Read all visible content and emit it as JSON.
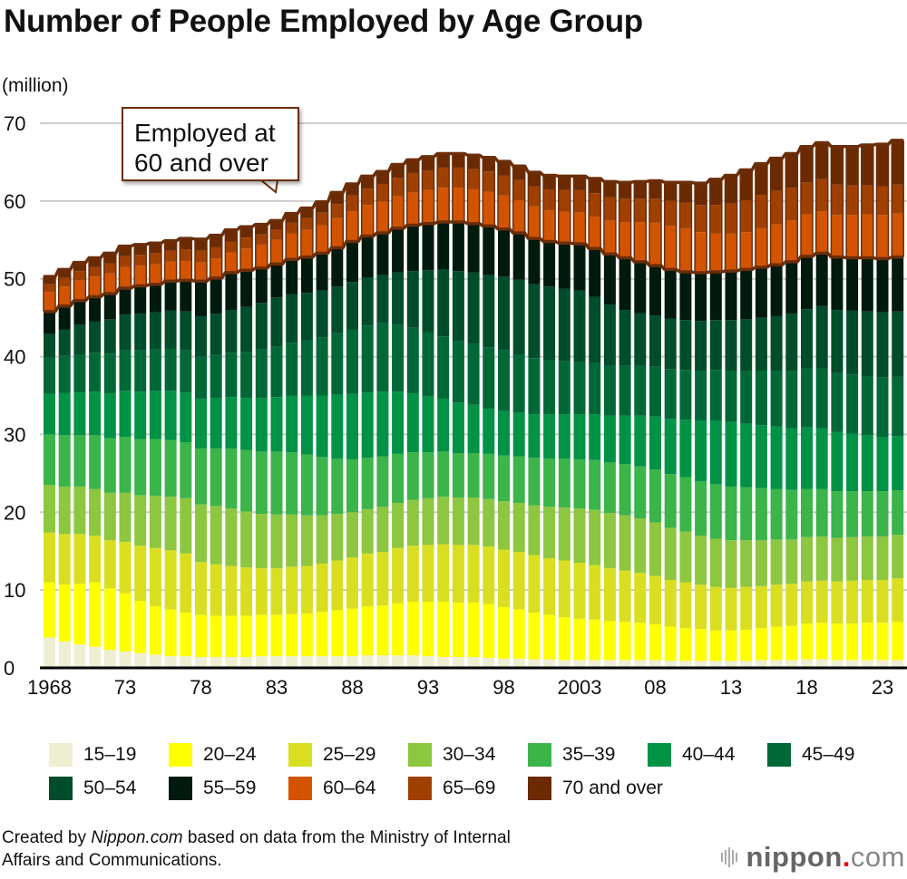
{
  "chart_data": {
    "type": "bar",
    "stacked": true,
    "title": "Number of People Employed by Age Group",
    "ylabel": "(million)",
    "xlabel": "",
    "ylim": [
      0,
      70
    ],
    "yticks": [
      0,
      10,
      20,
      30,
      40,
      50,
      60,
      70
    ],
    "grid": true,
    "legend_position": "bottom",
    "annotation": {
      "line1": "Employed at",
      "line2": "60 and over",
      "target_year": 1983
    },
    "x": [
      1968,
      1969,
      1970,
      1971,
      1972,
      1973,
      1974,
      1975,
      1976,
      1977,
      1978,
      1979,
      1980,
      1981,
      1982,
      1983,
      1984,
      1985,
      1986,
      1987,
      1988,
      1989,
      1990,
      1991,
      1992,
      1993,
      1994,
      1995,
      1996,
      1997,
      1998,
      1999,
      2000,
      2001,
      2002,
      2003,
      2004,
      2005,
      2006,
      2007,
      2008,
      2009,
      2010,
      2011,
      2012,
      2013,
      2014,
      2015,
      2016,
      2017,
      2018,
      2019,
      2020,
      2021,
      2022,
      2023,
      2024
    ],
    "xtick_labels": [
      {
        "year": 1968,
        "label": "1968"
      },
      {
        "year": 1973,
        "label": "73"
      },
      {
        "year": 1978,
        "label": "78"
      },
      {
        "year": 1983,
        "label": "83"
      },
      {
        "year": 1988,
        "label": "88"
      },
      {
        "year": 1993,
        "label": "93"
      },
      {
        "year": 1998,
        "label": "98"
      },
      {
        "year": 2003,
        "label": "2003"
      },
      {
        "year": 2008,
        "label": "08"
      },
      {
        "year": 2013,
        "label": "13"
      },
      {
        "year": 2018,
        "label": "18"
      },
      {
        "year": 2023,
        "label": "23"
      }
    ],
    "anchor_cumulative_note": "values below are per-group employment in millions, estimated from the figure",
    "series": [
      {
        "name": "15–19",
        "color": "#eeeed2",
        "values": [
          3.9,
          3.4,
          3.0,
          2.7,
          2.3,
          2.1,
          1.9,
          1.7,
          1.5,
          1.5,
          1.4,
          1.4,
          1.4,
          1.4,
          1.5,
          1.5,
          1.5,
          1.5,
          1.5,
          1.5,
          1.5,
          1.6,
          1.6,
          1.6,
          1.6,
          1.5,
          1.4,
          1.4,
          1.4,
          1.3,
          1.2,
          1.2,
          1.1,
          1.1,
          1.0,
          1.0,
          1.0,
          1.0,
          1.0,
          1.0,
          1.0,
          0.9,
          0.9,
          0.9,
          0.9,
          0.9,
          0.9,
          1.0,
          1.0,
          1.0,
          1.1,
          1.1,
          1.0,
          1.0,
          1.0,
          1.0,
          1.0
        ]
      },
      {
        "name": "20–24",
        "color": "#ffff00",
        "values": [
          7.1,
          7.3,
          7.8,
          8.3,
          7.9,
          7.5,
          6.7,
          6.2,
          6.0,
          5.6,
          5.4,
          5.3,
          5.3,
          5.3,
          5.3,
          5.3,
          5.4,
          5.5,
          5.7,
          5.9,
          6.1,
          6.3,
          6.4,
          6.7,
          6.9,
          7.0,
          7.1,
          7.0,
          7.0,
          6.9,
          6.6,
          6.3,
          6.0,
          5.7,
          5.5,
          5.3,
          5.2,
          5.0,
          4.9,
          4.8,
          4.6,
          4.4,
          4.2,
          4.1,
          3.9,
          3.9,
          4.0,
          4.1,
          4.3,
          4.4,
          4.6,
          4.7,
          4.7,
          4.7,
          4.8,
          4.8,
          4.9
        ]
      },
      {
        "name": "25–29",
        "color": "#d9df20",
        "values": [
          6.4,
          6.5,
          6.4,
          6.0,
          6.2,
          6.6,
          7.1,
          7.5,
          7.6,
          7.6,
          6.8,
          6.6,
          6.4,
          6.2,
          6.0,
          6.0,
          6.1,
          6.1,
          6.2,
          6.4,
          6.6,
          6.8,
          6.9,
          7.1,
          7.2,
          7.3,
          7.4,
          7.4,
          7.4,
          7.4,
          7.4,
          7.4,
          7.4,
          7.3,
          7.3,
          7.2,
          7.0,
          6.8,
          6.6,
          6.4,
          6.2,
          6.0,
          5.9,
          5.7,
          5.6,
          5.5,
          5.5,
          5.4,
          5.4,
          5.4,
          5.4,
          5.4,
          5.4,
          5.5,
          5.5,
          5.5,
          5.6
        ]
      },
      {
        "name": "30–34",
        "color": "#8dc63f",
        "values": [
          6.1,
          6.1,
          6.1,
          6.0,
          6.1,
          6.3,
          6.5,
          6.7,
          6.9,
          7.1,
          7.4,
          7.5,
          7.4,
          7.2,
          7.0,
          6.9,
          6.7,
          6.5,
          6.2,
          6.0,
          5.8,
          5.7,
          5.8,
          5.8,
          5.9,
          6.0,
          6.1,
          6.1,
          6.1,
          6.1,
          6.2,
          6.3,
          6.4,
          6.6,
          6.8,
          7.0,
          7.1,
          7.1,
          7.1,
          7.0,
          6.9,
          6.7,
          6.5,
          6.3,
          6.2,
          6.1,
          6.0,
          5.9,
          5.8,
          5.7,
          5.7,
          5.7,
          5.6,
          5.6,
          5.6,
          5.6,
          5.6
        ]
      },
      {
        "name": "35–39",
        "color": "#3bb44a",
        "values": [
          6.5,
          6.6,
          6.6,
          6.9,
          7.0,
          7.2,
          7.2,
          7.3,
          7.3,
          7.2,
          7.2,
          7.4,
          7.7,
          7.9,
          8.0,
          8.1,
          8.0,
          7.8,
          7.5,
          7.1,
          6.8,
          6.6,
          6.5,
          6.3,
          6.1,
          5.9,
          5.8,
          5.7,
          5.7,
          5.8,
          5.9,
          6.0,
          6.1,
          6.2,
          6.3,
          6.3,
          6.4,
          6.5,
          6.6,
          6.7,
          6.8,
          6.9,
          7.0,
          7.0,
          7.0,
          6.9,
          6.8,
          6.7,
          6.5,
          6.4,
          6.2,
          6.1,
          6.0,
          5.9,
          5.8,
          5.8,
          5.7
        ]
      },
      {
        "name": "40–44",
        "color": "#009245",
        "values": [
          5.2,
          5.4,
          5.5,
          5.6,
          5.8,
          5.9,
          6.1,
          6.2,
          6.3,
          6.4,
          6.4,
          6.5,
          6.6,
          6.7,
          6.9,
          7.0,
          7.3,
          7.6,
          7.9,
          8.2,
          8.4,
          8.4,
          8.3,
          8.0,
          7.6,
          7.2,
          6.8,
          6.5,
          6.2,
          5.8,
          5.7,
          5.6,
          5.6,
          5.7,
          5.7,
          5.8,
          5.9,
          6.0,
          6.2,
          6.5,
          6.8,
          7.1,
          7.4,
          7.8,
          8.2,
          8.3,
          8.2,
          8.1,
          8.0,
          7.9,
          7.9,
          7.8,
          7.6,
          7.4,
          7.2,
          7.0,
          7.0
        ]
      },
      {
        "name": "45–49",
        "color": "#006837",
        "values": [
          4.7,
          4.8,
          4.9,
          5.0,
          5.1,
          5.2,
          5.3,
          5.3,
          5.4,
          5.4,
          5.4,
          5.5,
          5.7,
          5.9,
          6.2,
          6.5,
          6.8,
          7.1,
          7.5,
          7.9,
          8.3,
          8.6,
          8.8,
          8.6,
          8.4,
          8.2,
          8.0,
          7.9,
          7.8,
          7.9,
          7.8,
          7.5,
          7.2,
          7.0,
          6.8,
          6.7,
          6.6,
          6.5,
          6.4,
          6.4,
          6.4,
          6.4,
          6.4,
          6.4,
          6.5,
          6.6,
          6.8,
          7.0,
          7.2,
          7.4,
          7.6,
          7.7,
          7.6,
          7.6,
          7.6,
          7.6,
          7.6
        ]
      },
      {
        "name": "50–54",
        "color": "#004d2b",
        "values": [
          3.0,
          3.4,
          3.8,
          4.0,
          4.4,
          4.6,
          4.7,
          4.8,
          4.9,
          5.0,
          5.2,
          5.3,
          5.5,
          5.8,
          6.0,
          6.3,
          6.2,
          6.1,
          6.0,
          6.0,
          6.1,
          6.2,
          6.2,
          6.7,
          7.3,
          8.0,
          8.6,
          9.0,
          9.2,
          9.3,
          9.5,
          9.6,
          9.5,
          9.4,
          9.3,
          9.2,
          8.5,
          7.8,
          7.2,
          6.8,
          6.6,
          6.5,
          6.4,
          6.4,
          6.4,
          6.5,
          6.6,
          6.8,
          7.0,
          7.3,
          7.6,
          8.0,
          8.1,
          8.2,
          8.3,
          8.4,
          8.4
        ]
      },
      {
        "name": "55–59",
        "color": "#001a0e",
        "values": [
          2.9,
          3.0,
          3.1,
          3.2,
          3.3,
          3.4,
          3.6,
          3.6,
          3.8,
          4.0,
          4.5,
          4.6,
          4.8,
          4.7,
          4.5,
          4.3,
          4.5,
          4.6,
          4.8,
          5.0,
          5.2,
          5.3,
          5.4,
          5.7,
          5.9,
          6.0,
          6.1,
          6.3,
          6.3,
          6.3,
          6.1,
          6.0,
          5.9,
          5.8,
          5.9,
          6.0,
          6.2,
          6.5,
          6.7,
          6.6,
          6.4,
          6.3,
          6.2,
          6.2,
          6.2,
          6.3,
          6.4,
          6.5,
          6.6,
          6.7,
          6.8,
          6.8,
          6.8,
          6.8,
          6.9,
          6.9,
          7.0
        ]
      },
      {
        "name": "60–64",
        "color": "#d35400",
        "values": [
          2.5,
          2.5,
          2.6,
          2.6,
          2.6,
          2.7,
          2.6,
          2.6,
          2.5,
          2.5,
          2.4,
          2.5,
          2.6,
          2.8,
          3.0,
          3.1,
          3.3,
          3.5,
          3.6,
          3.8,
          3.9,
          4.0,
          4.0,
          4.1,
          4.2,
          4.3,
          4.4,
          4.4,
          4.4,
          4.4,
          4.3,
          4.2,
          4.1,
          4.0,
          4.0,
          4.0,
          4.1,
          4.3,
          4.6,
          5.1,
          5.5,
          5.6,
          5.6,
          5.2,
          4.9,
          4.8,
          4.8,
          5.0,
          5.2,
          5.3,
          5.4,
          5.4,
          5.4,
          5.5,
          5.6,
          5.6,
          5.6
        ]
      },
      {
        "name": "65–69",
        "color": "#a04000",
        "values": [
          1.0,
          1.1,
          1.2,
          1.2,
          1.3,
          1.4,
          1.4,
          1.4,
          1.4,
          1.5,
          1.5,
          1.5,
          1.4,
          1.4,
          1.3,
          1.3,
          1.4,
          1.5,
          1.6,
          1.8,
          2.0,
          2.1,
          2.3,
          2.4,
          2.5,
          2.5,
          2.6,
          2.6,
          2.6,
          2.6,
          2.6,
          2.6,
          2.6,
          2.7,
          2.8,
          2.9,
          3.0,
          3.0,
          3.0,
          3.0,
          3.1,
          3.2,
          3.3,
          3.5,
          3.7,
          3.9,
          4.1,
          4.3,
          4.3,
          4.2,
          4.1,
          4.1,
          3.9,
          3.8,
          3.7,
          3.7,
          3.7
        ]
      },
      {
        "name": "70 and over",
        "color": "#6b2a00",
        "values": [
          1.0,
          1.1,
          1.1,
          1.2,
          1.3,
          1.3,
          1.3,
          1.3,
          1.3,
          1.4,
          1.5,
          1.5,
          1.5,
          1.4,
          1.3,
          1.2,
          1.2,
          1.3,
          1.4,
          1.5,
          1.5,
          1.6,
          1.6,
          1.7,
          1.7,
          1.8,
          1.8,
          1.8,
          1.8,
          1.8,
          1.8,
          1.8,
          1.8,
          1.8,
          1.8,
          1.8,
          1.9,
          2.0,
          2.1,
          2.2,
          2.3,
          2.4,
          2.6,
          2.8,
          3.3,
          3.6,
          3.9,
          4.0,
          4.2,
          4.4,
          4.6,
          4.7,
          4.9,
          5.0,
          5.2,
          5.4,
          5.7
        ]
      }
    ]
  },
  "header": {
    "title": "Number of People Employed by Age Group",
    "unit": "(million)"
  },
  "callout": {
    "line1": "Employed at",
    "line2": "60 and over"
  },
  "legend": {
    "items": [
      {
        "label": "15–19",
        "color": "#eeeed2"
      },
      {
        "label": "20–24",
        "color": "#ffff00"
      },
      {
        "label": "25–29",
        "color": "#d9df20"
      },
      {
        "label": "30–34",
        "color": "#8dc63f"
      },
      {
        "label": "35–39",
        "color": "#3bb44a"
      },
      {
        "label": "40–44",
        "color": "#009245"
      },
      {
        "label": "45–49",
        "color": "#006837"
      },
      {
        "label": "50–54",
        "color": "#004d2b"
      },
      {
        "label": "55–59",
        "color": "#001a0e"
      },
      {
        "label": "60–64",
        "color": "#d35400"
      },
      {
        "label": "65–69",
        "color": "#a04000"
      },
      {
        "label": "70 and over",
        "color": "#6b2a00"
      }
    ]
  },
  "footer": {
    "source_prefix": "Created by ",
    "source_brand": "Nippon.com",
    "source_rest": " based on data from the Ministry of Internal",
    "source_line2": "Affairs and Communications.",
    "logo_main": "nippon",
    "logo_dot": ".",
    "logo_suffix": "com"
  },
  "colors": {
    "outline_60plus": "#6b2e0b",
    "grid": "#cccccc",
    "axis": "#000000"
  }
}
